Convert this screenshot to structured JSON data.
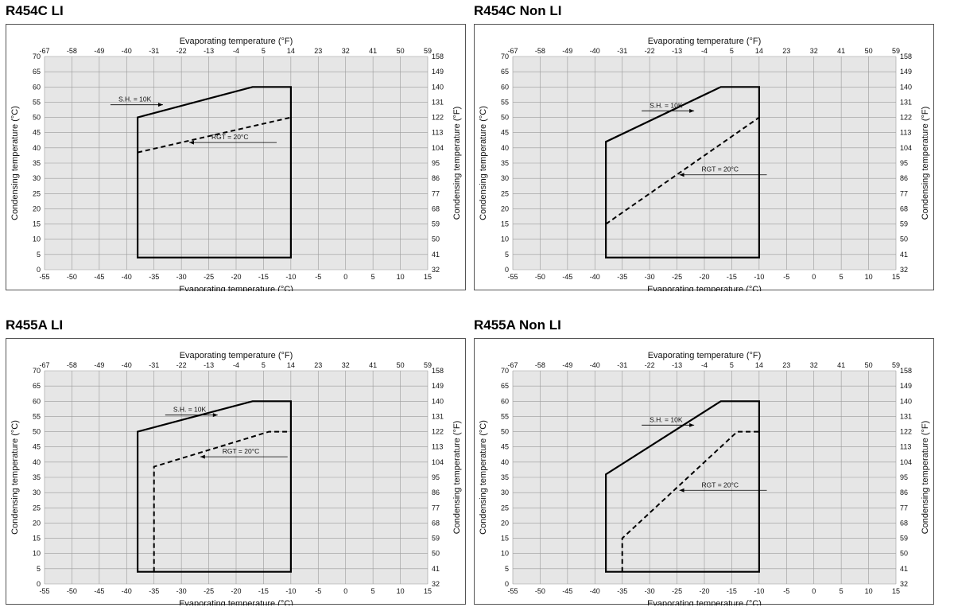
{
  "chart_data": [
    {
      "type": "line",
      "title": "R454C LI",
      "xlabel_bottom": "Evaporating temperature (°C)",
      "xlabel_top": "Evaporating temperature (°F)",
      "ylabel_left": "Condensing temperature (°C)",
      "ylabel_right": "Condensing temperature (°F)",
      "xlim": [
        -55,
        15
      ],
      "ylim": [
        0,
        70
      ],
      "x_ticks": [
        "-55",
        "-50",
        "-45",
        "-40",
        "-35",
        "-30",
        "-25",
        "-20",
        "-15",
        "-10",
        "-5",
        "0",
        "5",
        "10",
        "15"
      ],
      "x_top_ticks": [
        "-67",
        "-58",
        "-49",
        "-40",
        "-31",
        "-22",
        "-13",
        "-4",
        "5",
        "14",
        "23",
        "32",
        "41",
        "50",
        "59"
      ],
      "y_ticks": [
        "0",
        "5",
        "10",
        "15",
        "20",
        "25",
        "30",
        "35",
        "40",
        "45",
        "50",
        "55",
        "60",
        "65",
        "70"
      ],
      "y_right_ticks": [
        "32",
        "41",
        "50",
        "59",
        "68",
        "77",
        "86",
        "95",
        "104",
        "113",
        "122",
        "131",
        "140",
        "149",
        "158"
      ],
      "grid": true,
      "series": [
        {
          "name": "S.H. = 10K",
          "style": "solid",
          "x": [
            -38,
            -38,
            -17,
            -10,
            -10,
            -38
          ],
          "y": [
            4,
            50,
            60,
            60,
            4,
            4
          ],
          "closed": true
        },
        {
          "name": "RGT = 20°C",
          "style": "dashed",
          "x": [
            -38,
            -10
          ],
          "y": [
            38.5,
            50
          ]
        }
      ],
      "annotations": [
        {
          "text": "S.H. = 10K",
          "x": -41.5,
          "y": 55.2,
          "arrow": "right"
        },
        {
          "text": "RGT = 20°C",
          "x": -24.5,
          "y": 42.8,
          "arrow": "left"
        }
      ]
    },
    {
      "type": "line",
      "title": "R454C Non LI",
      "xlabel_bottom": "Evaporating temperature (°C)",
      "xlabel_top": "Evaporating temperature (°F)",
      "ylabel_left": "Condensing temperature (°C)",
      "ylabel_right": "Condensing temperature (°F)",
      "xlim": [
        -55,
        15
      ],
      "ylim": [
        0,
        70
      ],
      "x_ticks": [
        "-55",
        "-50",
        "-45",
        "-40",
        "-35",
        "-30",
        "-25",
        "-20",
        "-15",
        "-10",
        "-5",
        "0",
        "5",
        "10",
        "15"
      ],
      "x_top_ticks": [
        "-67",
        "-58",
        "-49",
        "-40",
        "-31",
        "-22",
        "-13",
        "-4",
        "5",
        "14",
        "23",
        "32",
        "41",
        "50",
        "59"
      ],
      "y_ticks": [
        "0",
        "5",
        "10",
        "15",
        "20",
        "25",
        "30",
        "35",
        "40",
        "45",
        "50",
        "55",
        "60",
        "65",
        "70"
      ],
      "y_right_ticks": [
        "32",
        "41",
        "50",
        "59",
        "68",
        "77",
        "86",
        "95",
        "104",
        "113",
        "122",
        "131",
        "140",
        "149",
        "158"
      ],
      "grid": true,
      "series": [
        {
          "name": "S.H. = 10K",
          "style": "solid",
          "x": [
            -38,
            -38,
            -17,
            -10,
            -10,
            -38
          ],
          "y": [
            4,
            42,
            60,
            60,
            4,
            4
          ],
          "closed": true
        },
        {
          "name": "RGT = 20°C",
          "style": "dashed",
          "x": [
            -38,
            -10
          ],
          "y": [
            15,
            50
          ]
        }
      ],
      "annotations": [
        {
          "text": "S.H. = 10K",
          "x": -30,
          "y": 53.2,
          "arrow": "right"
        },
        {
          "text": "RGT = 20°C",
          "x": -20.5,
          "y": 32.2,
          "arrow": "left"
        }
      ]
    },
    {
      "type": "line",
      "title": "R455A LI",
      "xlabel_bottom": "Evaporating temperature (°C)",
      "xlabel_top": "Evaporating temperature (°F)",
      "ylabel_left": "Condensing temperature (°C)",
      "ylabel_right": "Condensing temperature (°F)",
      "xlim": [
        -55,
        15
      ],
      "ylim": [
        0,
        70
      ],
      "x_ticks": [
        "-55",
        "-50",
        "-45",
        "-40",
        "-35",
        "-30",
        "-25",
        "-20",
        "-15",
        "-10",
        "-5",
        "0",
        "5",
        "10",
        "15"
      ],
      "x_top_ticks": [
        "-67",
        "-58",
        "-49",
        "-40",
        "-31",
        "-22",
        "-13",
        "-4",
        "5",
        "14",
        "23",
        "32",
        "41",
        "50",
        "59"
      ],
      "y_ticks": [
        "0",
        "5",
        "10",
        "15",
        "20",
        "25",
        "30",
        "35",
        "40",
        "45",
        "50",
        "55",
        "60",
        "65",
        "70"
      ],
      "y_right_ticks": [
        "32",
        "41",
        "50",
        "59",
        "68",
        "77",
        "86",
        "95",
        "104",
        "113",
        "122",
        "131",
        "140",
        "149",
        "158"
      ],
      "grid": true,
      "series": [
        {
          "name": "S.H. = 10K",
          "style": "solid",
          "x": [
            -38,
            -38,
            -17,
            -10,
            -10,
            -38
          ],
          "y": [
            4,
            50,
            60,
            60,
            4,
            4
          ],
          "closed": true
        },
        {
          "name": "RGT = 20°C",
          "style": "dashed",
          "x": [
            -35,
            -35,
            -14,
            -10
          ],
          "y": [
            4,
            38.5,
            50,
            50
          ]
        }
      ],
      "annotations": [
        {
          "text": "S.H. = 10K",
          "x": -31.5,
          "y": 56.5,
          "arrow": "right"
        },
        {
          "text": "RGT = 20°C",
          "x": -22.5,
          "y": 42.8,
          "arrow": "left"
        }
      ]
    },
    {
      "type": "line",
      "title": "R455A Non LI",
      "xlabel_bottom": "Evaporating temperature (°C)",
      "xlabel_top": "Evaporating temperature (°F)",
      "ylabel_left": "Condensing temperature (°C)",
      "ylabel_right": "Condensing temperature (°F)",
      "xlim": [
        -55,
        15
      ],
      "ylim": [
        0,
        70
      ],
      "x_ticks": [
        "-55",
        "-50",
        "-45",
        "-40",
        "-35",
        "-30",
        "-25",
        "-20",
        "-15",
        "-10",
        "-5",
        "0",
        "5",
        "10",
        "15"
      ],
      "x_top_ticks": [
        "-67",
        "-58",
        "-49",
        "-40",
        "-31",
        "-22",
        "-13",
        "-4",
        "5",
        "14",
        "23",
        "32",
        "41",
        "50",
        "59"
      ],
      "y_ticks": [
        "0",
        "5",
        "10",
        "15",
        "20",
        "25",
        "30",
        "35",
        "40",
        "45",
        "50",
        "55",
        "60",
        "65",
        "70"
      ],
      "y_right_ticks": [
        "32",
        "41",
        "50",
        "59",
        "68",
        "77",
        "86",
        "95",
        "104",
        "113",
        "122",
        "131",
        "140",
        "149",
        "158"
      ],
      "grid": true,
      "series": [
        {
          "name": "S.H. = 10K",
          "style": "solid",
          "x": [
            -38,
            -38,
            -17,
            -10,
            -10,
            -38
          ],
          "y": [
            4,
            36,
            60,
            60,
            4,
            4
          ],
          "closed": true
        },
        {
          "name": "RGT = 20°C",
          "style": "dashed",
          "x": [
            -35,
            -35,
            -14,
            -10
          ],
          "y": [
            4,
            15,
            50,
            50
          ]
        }
      ],
      "annotations": [
        {
          "text": "S.H. = 10K",
          "x": -30,
          "y": 53.2,
          "arrow": "right"
        },
        {
          "text": "RGT = 20°C",
          "x": -20.5,
          "y": 31.8,
          "arrow": "left"
        }
      ]
    }
  ]
}
